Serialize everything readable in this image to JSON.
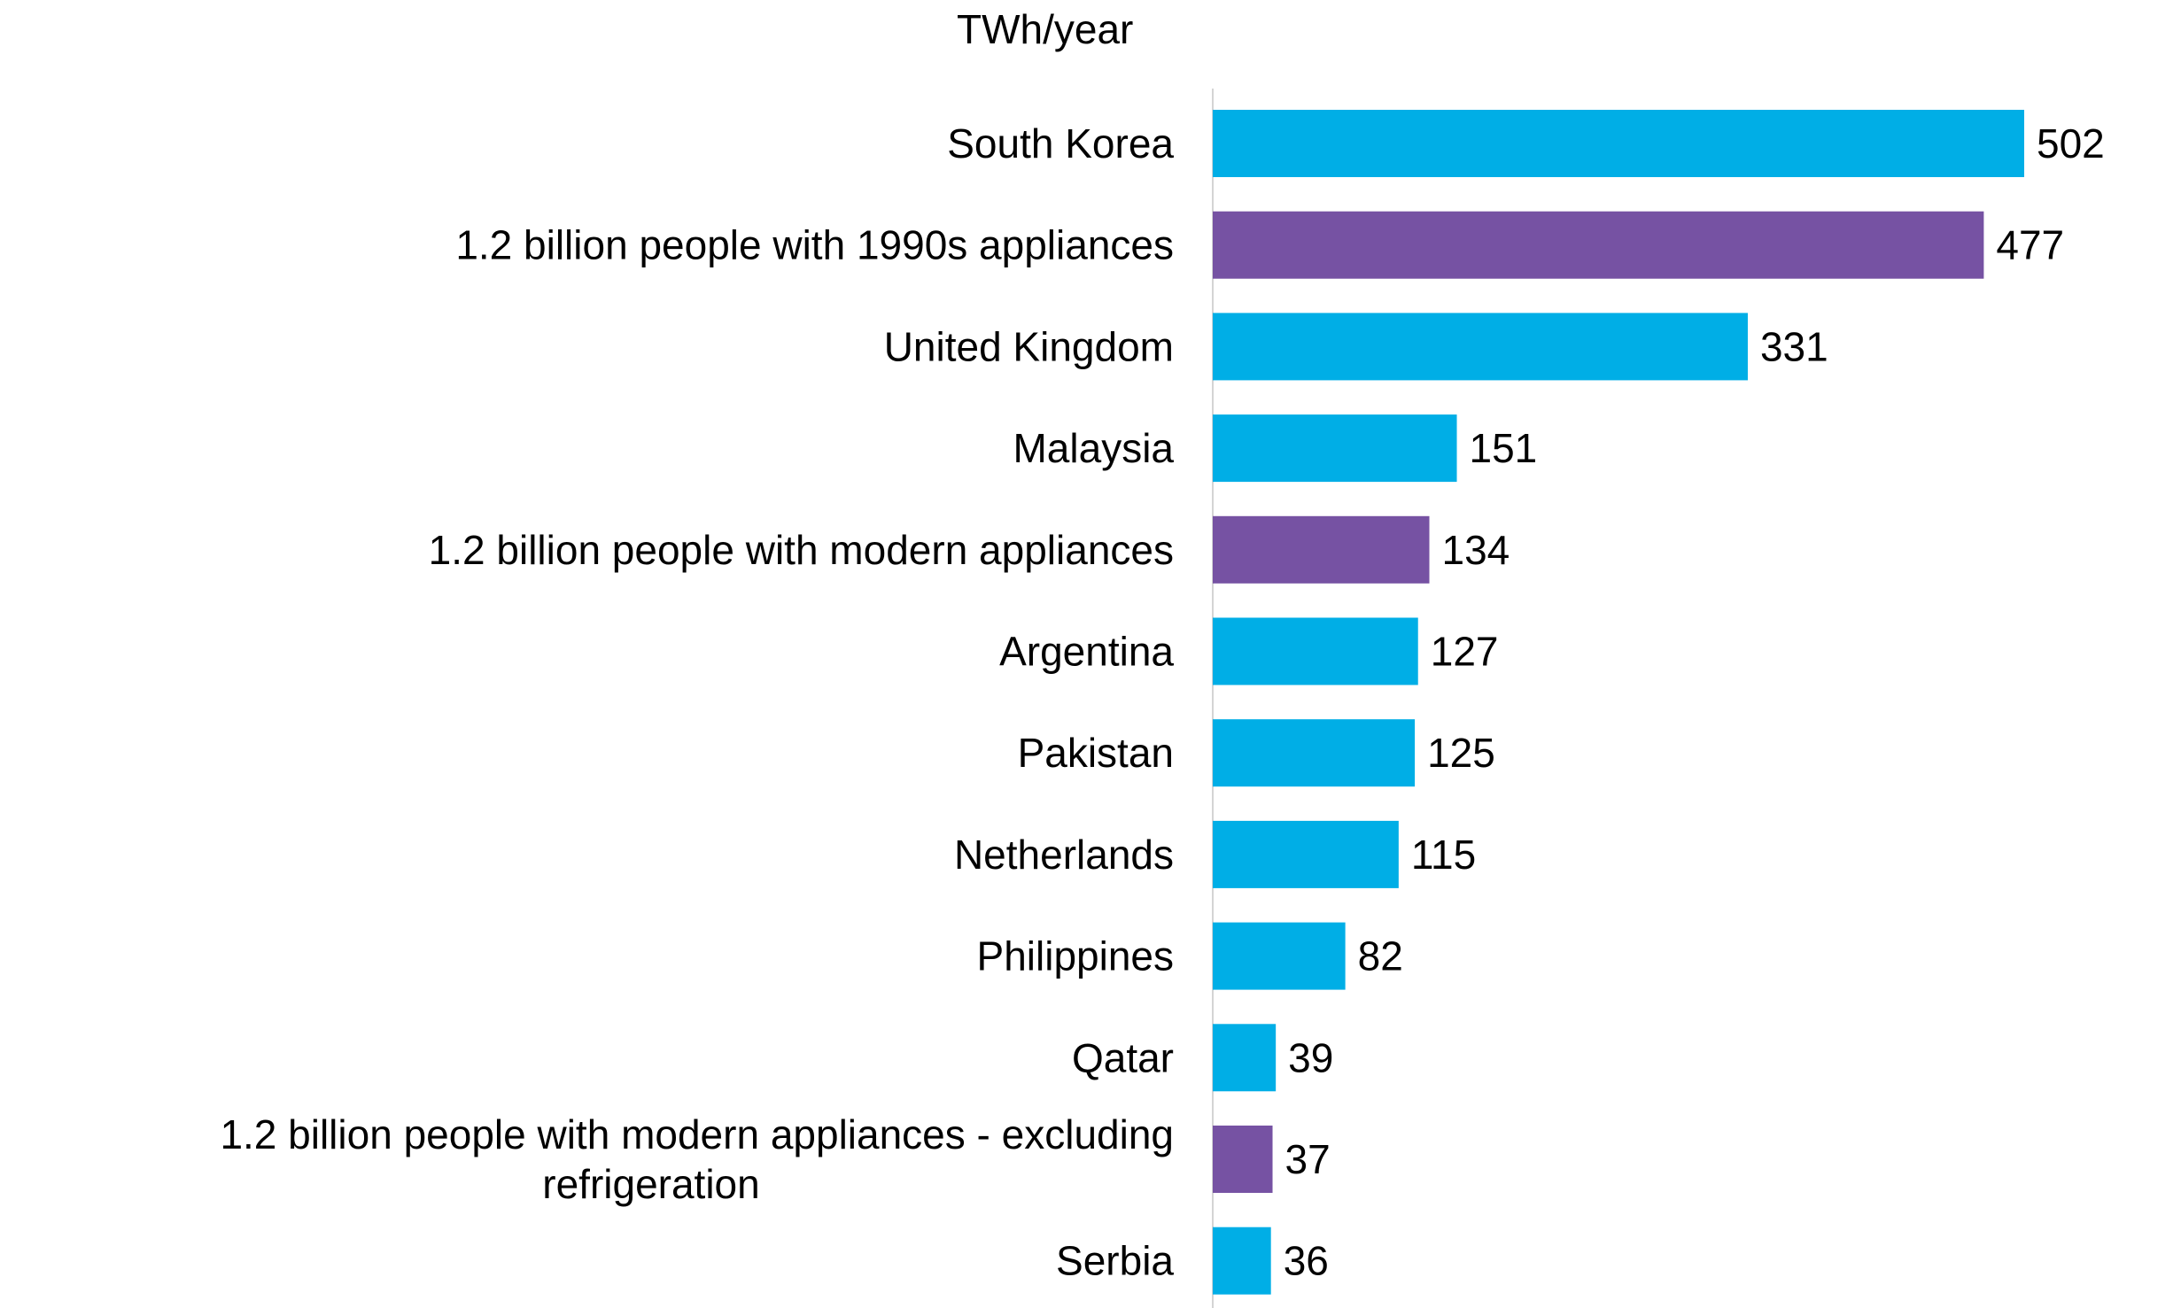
{
  "chart_data": {
    "type": "bar",
    "orientation": "horizontal",
    "unit_label": "TWh/year",
    "categories": [
      "South Korea",
      "1.2 billion people with 1990s appliances",
      "United Kingdom",
      "Malaysia",
      "1.2 billion people with modern appliances",
      "Argentina",
      "Pakistan",
      "Netherlands",
      "Philippines",
      "Qatar",
      "1.2 billion people with modern appliances - excluding refrigeration",
      "Serbia"
    ],
    "values": [
      502,
      477,
      331,
      151,
      134,
      127,
      125,
      115,
      82,
      39,
      37,
      36
    ],
    "bar_groups": [
      "country",
      "scenario",
      "country",
      "country",
      "scenario",
      "country",
      "country",
      "country",
      "country",
      "country",
      "scenario",
      "country"
    ],
    "data_labels": [
      "502",
      "477",
      "331",
      "151",
      "134",
      "127",
      "125",
      "115",
      "82",
      "39",
      "37",
      "36"
    ],
    "xlim": [
      0,
      502
    ],
    "grid": false,
    "legend": "none",
    "colors": {
      "country": "#00AEE6",
      "scenario": "#7652A3",
      "axis": "#d4d4d4",
      "text": "#000000"
    }
  }
}
